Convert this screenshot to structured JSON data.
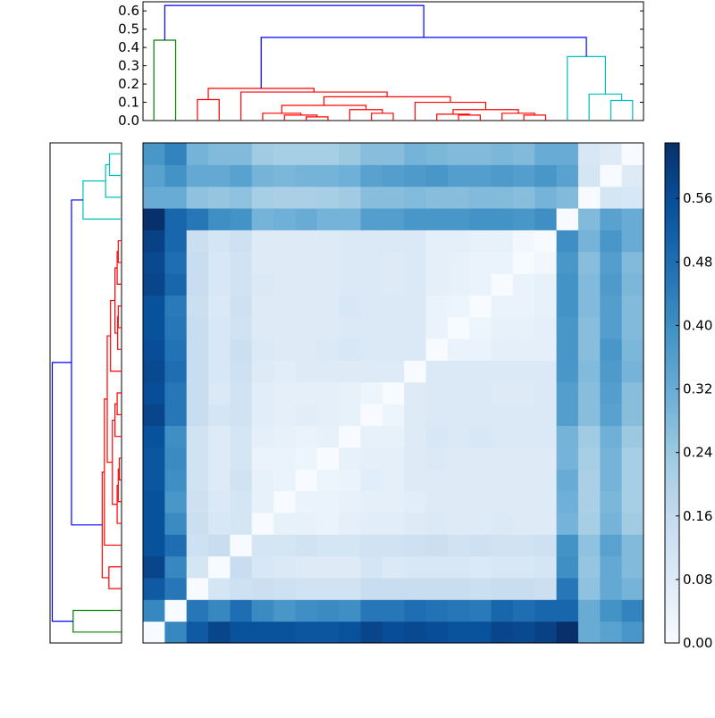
{
  "chart_data": {
    "type": "heatmap",
    "title": "",
    "colormap": "Blues",
    "colormap_stops": [
      "#f7fbff",
      "#deebf7",
      "#c6dbef",
      "#9ecae1",
      "#6baed6",
      "#4292c6",
      "#2171b5",
      "#08519c",
      "#08306b"
    ],
    "value_range": [
      0,
      0.63
    ],
    "row_order": "bottom-to-top",
    "colorbar": {
      "ticks": [
        0.0,
        0.08,
        0.16,
        0.24,
        0.32,
        0.4,
        0.48,
        0.56
      ],
      "tick_labels": [
        "0.00",
        "0.08",
        "0.16",
        "0.24",
        "0.32",
        "0.40",
        "0.48",
        "0.56"
      ]
    },
    "top_dendrogram": {
      "ylim": [
        0,
        0.65
      ],
      "ticks": [
        0.0,
        0.1,
        0.2,
        0.3,
        0.4,
        0.5,
        0.6
      ],
      "tick_labels": [
        "0.0",
        "0.1",
        "0.2",
        "0.3",
        "0.4",
        "0.5",
        "0.6"
      ]
    },
    "left_dendrogram": {
      "xlim": [
        0,
        0.65
      ]
    },
    "link_colors": {
      "above_threshold": "#0000ff",
      "green": "#008000",
      "red": "#ff0000",
      "cyan": "#00bfbf"
    },
    "tree": {
      "h": 0.63,
      "color": "above_threshold",
      "c": [
        {
          "h": 0.44,
          "color": "green",
          "c": [
            0,
            1
          ]
        },
        {
          "h": 0.455,
          "color": "above_threshold",
          "c": [
            {
              "h": 0.176,
              "color": "red",
              "c": [
                {
                  "h": 0.115,
                  "c": [
                    2,
                    3
                  ]
                },
                {
                  "h": 0.156,
                  "c": [
                    4,
                    {
                      "h": 0.13,
                      "c": [
                        {
                          "h": 0.083,
                          "c": [
                            {
                              "h": 0.04,
                              "c": [
                                5,
                                {
                                  "h": 0.03,
                                  "c": [
                                    6,
                                    {
                                      "h": 0.02,
                                      "c": [
                                        7,
                                        8
                                      ]
                                    }
                                  ]
                                }
                              ]
                            },
                            {
                              "h": 0.06,
                              "c": [
                                9,
                                {
                                  "h": 0.04,
                                  "c": [
                                    10,
                                    11
                                  ]
                                }
                              ]
                            }
                          ]
                        },
                        {
                          "h": 0.1,
                          "c": [
                            12,
                            {
                              "h": 0.06,
                              "c": [
                                {
                                  "h": 0.035,
                                  "c": [
                                    13,
                                    {
                                      "h": 0.03,
                                      "c": [
                                        14,
                                        15
                                      ]
                                    }
                                  ]
                                },
                                {
                                  "h": 0.04,
                                  "c": [
                                    16,
                                    {
                                      "h": 0.03,
                                      "c": [
                                        17,
                                        18
                                      ]
                                    }
                                  ]
                                }
                              ]
                            }
                          ]
                        }
                      ]
                    }
                  ]
                }
              ]
            },
            {
              "h": 0.35,
              "color": "cyan",
              "c": [
                19,
                {
                  "h": 0.145,
                  "c": [
                    20,
                    {
                      "h": 0.11,
                      "c": [
                        21,
                        22
                      ]
                    }
                  ]
                }
              ]
            }
          ]
        }
      ]
    },
    "matrix": [
      [
        0,
        0.42,
        0.53,
        0.58,
        0.55,
        0.55,
        0.55,
        0.54,
        0.54,
        0.55,
        0.58,
        0.56,
        0.57,
        0.56,
        0.55,
        0.55,
        0.58,
        0.57,
        0.59,
        0.63,
        0.32,
        0.35,
        0.38
      ],
      [
        0.42,
        0,
        0.46,
        0.42,
        0.48,
        0.41,
        0.38,
        0.4,
        0.41,
        0.4,
        0.46,
        0.46,
        0.48,
        0.47,
        0.46,
        0.45,
        0.5,
        0.48,
        0.5,
        0.5,
        0.32,
        0.39,
        0.43
      ],
      [
        0.53,
        0.46,
        0,
        0.11,
        0.13,
        0.14,
        0.13,
        0.12,
        0.12,
        0.12,
        0.15,
        0.15,
        0.15,
        0.15,
        0.15,
        0.14,
        0.15,
        0.15,
        0.14,
        0.46,
        0.26,
        0.33,
        0.3
      ],
      [
        0.58,
        0.42,
        0.11,
        0,
        0.15,
        0.1,
        0.09,
        0.08,
        0.08,
        0.08,
        0.11,
        0.09,
        0.1,
        0.1,
        0.1,
        0.09,
        0.1,
        0.1,
        0.11,
        0.4,
        0.25,
        0.33,
        0.28
      ],
      [
        0.55,
        0.48,
        0.13,
        0.15,
        0,
        0.11,
        0.11,
        0.12,
        0.11,
        0.11,
        0.12,
        0.12,
        0.13,
        0.14,
        0.12,
        0.13,
        0.12,
        0.12,
        0.13,
        0.39,
        0.26,
        0.35,
        0.28
      ],
      [
        0.55,
        0.41,
        0.14,
        0.1,
        0.11,
        0,
        0.05,
        0.05,
        0.04,
        0.06,
        0.07,
        0.07,
        0.08,
        0.09,
        0.08,
        0.08,
        0.09,
        0.08,
        0.08,
        0.3,
        0.22,
        0.3,
        0.23
      ],
      [
        0.55,
        0.38,
        0.13,
        0.09,
        0.11,
        0.05,
        0,
        0.04,
        0.04,
        0.05,
        0.06,
        0.06,
        0.07,
        0.08,
        0.08,
        0.08,
        0.08,
        0.08,
        0.08,
        0.31,
        0.21,
        0.29,
        0.22
      ],
      [
        0.54,
        0.4,
        0.12,
        0.08,
        0.12,
        0.05,
        0.04,
        0,
        0.03,
        0.04,
        0.07,
        0.06,
        0.08,
        0.08,
        0.08,
        0.08,
        0.08,
        0.08,
        0.08,
        0.32,
        0.21,
        0.3,
        0.22
      ],
      [
        0.54,
        0.41,
        0.12,
        0.08,
        0.11,
        0.04,
        0.04,
        0.03,
        0,
        0.05,
        0.06,
        0.06,
        0.08,
        0.09,
        0.08,
        0.08,
        0.08,
        0.08,
        0.08,
        0.3,
        0.22,
        0.3,
        0.22
      ],
      [
        0.55,
        0.4,
        0.12,
        0.08,
        0.11,
        0.06,
        0.05,
        0.04,
        0.05,
        0,
        0.05,
        0.05,
        0.08,
        0.1,
        0.09,
        0.1,
        0.09,
        0.09,
        0.09,
        0.3,
        0.23,
        0.31,
        0.24
      ],
      [
        0.58,
        0.46,
        0.15,
        0.11,
        0.12,
        0.07,
        0.06,
        0.07,
        0.06,
        0.05,
        0,
        0.03,
        0.08,
        0.09,
        0.09,
        0.09,
        0.09,
        0.09,
        0.09,
        0.36,
        0.27,
        0.35,
        0.27
      ],
      [
        0.56,
        0.46,
        0.15,
        0.09,
        0.12,
        0.07,
        0.06,
        0.06,
        0.06,
        0.05,
        0.03,
        0,
        0.08,
        0.09,
        0.09,
        0.09,
        0.08,
        0.08,
        0.09,
        0.36,
        0.27,
        0.36,
        0.27
      ],
      [
        0.57,
        0.48,
        0.15,
        0.1,
        0.13,
        0.08,
        0.07,
        0.08,
        0.08,
        0.08,
        0.08,
        0.08,
        0,
        0.09,
        0.09,
        0.09,
        0.09,
        0.09,
        0.09,
        0.38,
        0.28,
        0.37,
        0.3
      ],
      [
        0.56,
        0.47,
        0.15,
        0.1,
        0.14,
        0.09,
        0.08,
        0.08,
        0.09,
        0.1,
        0.09,
        0.09,
        0.09,
        0,
        0.04,
        0.04,
        0.06,
        0.06,
        0.06,
        0.38,
        0.27,
        0.38,
        0.29
      ],
      [
        0.55,
        0.46,
        0.15,
        0.1,
        0.12,
        0.08,
        0.08,
        0.08,
        0.08,
        0.09,
        0.09,
        0.09,
        0.09,
        0.04,
        0,
        0.03,
        0.05,
        0.05,
        0.06,
        0.38,
        0.27,
        0.36,
        0.28
      ],
      [
        0.55,
        0.45,
        0.14,
        0.09,
        0.13,
        0.08,
        0.08,
        0.08,
        0.08,
        0.1,
        0.09,
        0.09,
        0.09,
        0.04,
        0.03,
        0,
        0.04,
        0.04,
        0.05,
        0.39,
        0.28,
        0.36,
        0.28
      ],
      [
        0.58,
        0.5,
        0.15,
        0.1,
        0.12,
        0.09,
        0.08,
        0.08,
        0.08,
        0.09,
        0.09,
        0.08,
        0.09,
        0.06,
        0.05,
        0.04,
        0,
        0.04,
        0.05,
        0.39,
        0.28,
        0.37,
        0.29
      ],
      [
        0.57,
        0.48,
        0.15,
        0.1,
        0.12,
        0.08,
        0.08,
        0.08,
        0.08,
        0.09,
        0.09,
        0.08,
        0.09,
        0.06,
        0.05,
        0.04,
        0.04,
        0,
        0.02,
        0.38,
        0.27,
        0.36,
        0.28
      ],
      [
        0.59,
        0.5,
        0.14,
        0.11,
        0.13,
        0.08,
        0.08,
        0.08,
        0.08,
        0.09,
        0.09,
        0.09,
        0.09,
        0.06,
        0.06,
        0.05,
        0.05,
        0.02,
        0,
        0.4,
        0.3,
        0.38,
        0.32
      ],
      [
        0.63,
        0.5,
        0.46,
        0.4,
        0.39,
        0.3,
        0.31,
        0.32,
        0.3,
        0.3,
        0.36,
        0.36,
        0.38,
        0.38,
        0.38,
        0.39,
        0.39,
        0.38,
        0.4,
        0,
        0.28,
        0.35,
        0.32
      ],
      [
        0.32,
        0.32,
        0.26,
        0.25,
        0.26,
        0.22,
        0.21,
        0.21,
        0.22,
        0.23,
        0.27,
        0.27,
        0.28,
        0.27,
        0.27,
        0.28,
        0.28,
        0.27,
        0.3,
        0.28,
        0,
        0.11,
        0.1
      ],
      [
        0.35,
        0.39,
        0.33,
        0.33,
        0.35,
        0.3,
        0.29,
        0.3,
        0.3,
        0.31,
        0.35,
        0.36,
        0.37,
        0.38,
        0.36,
        0.36,
        0.37,
        0.36,
        0.38,
        0.35,
        0.11,
        0,
        0.08
      ],
      [
        0.38,
        0.43,
        0.3,
        0.28,
        0.28,
        0.23,
        0.22,
        0.22,
        0.22,
        0.24,
        0.27,
        0.27,
        0.3,
        0.29,
        0.28,
        0.28,
        0.29,
        0.28,
        0.32,
        0.32,
        0.1,
        0.08,
        0
      ]
    ]
  }
}
